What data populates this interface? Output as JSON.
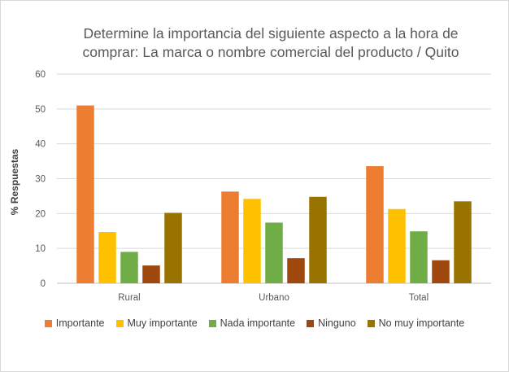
{
  "chart_data": {
    "type": "bar",
    "title_lines": [
      "Determine la importancia del siguiente aspecto a la hora de",
      "comprar: La marca o nombre comercial del producto / Quito"
    ],
    "ylabel": "% Respuestas",
    "xlabel": "",
    "ylim": [
      0,
      60
    ],
    "yticks": [
      0,
      10,
      20,
      30,
      40,
      50,
      60
    ],
    "grid": true,
    "legend_position": "bottom",
    "categories": [
      "Rural",
      "Urbano",
      "Total"
    ],
    "series": [
      {
        "name": "Importante",
        "color": "#ED7D31",
        "values": [
          51.0,
          26.3,
          33.6
        ]
      },
      {
        "name": "Muy importante",
        "color": "#FFC000",
        "values": [
          14.7,
          24.2,
          21.3
        ]
      },
      {
        "name": "Nada importante",
        "color": "#70AD47",
        "values": [
          9.0,
          17.4,
          14.9
        ]
      },
      {
        "name": "Ninguno",
        "color": "#9E480E",
        "values": [
          5.1,
          7.2,
          6.6
        ]
      },
      {
        "name": "No muy importante",
        "color": "#997300",
        "values": [
          20.2,
          24.8,
          23.5
        ]
      }
    ]
  }
}
